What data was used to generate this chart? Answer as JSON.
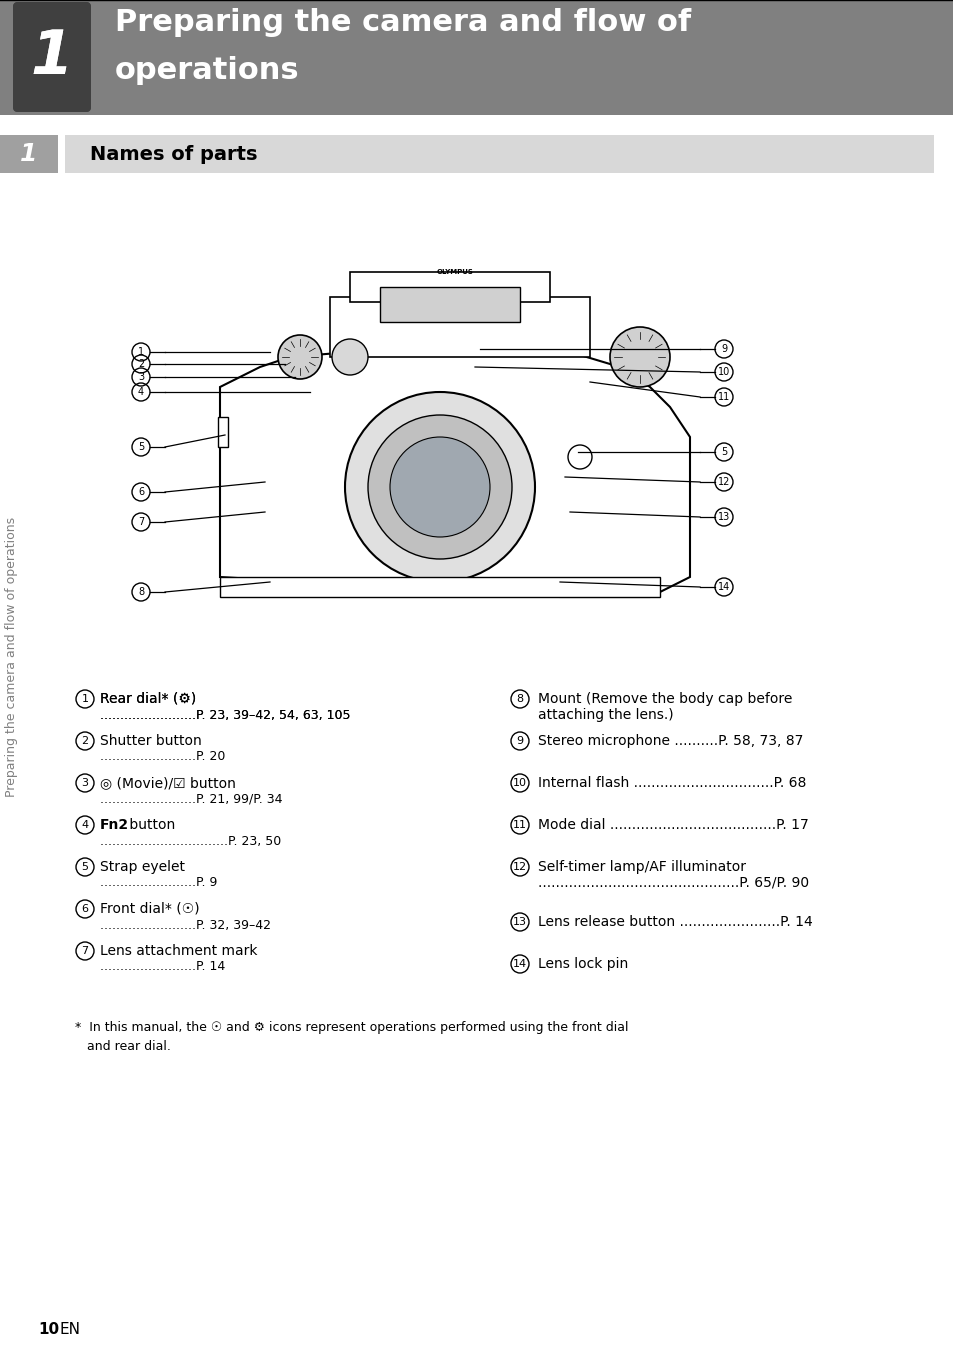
{
  "page_bg": "#ffffff",
  "header_bg": "#808080",
  "header_text": "Preparing the camera and flow of\noperations",
  "header_text_color": "#ffffff",
  "chapter_num": "1",
  "chapter_num_color": "#ffffff",
  "chapter_box_bg": "#404040",
  "section_bg": "#d8d8d8",
  "section_text": "Names of parts",
  "section_text_color": "#000000",
  "sidebar_text": "Preparing the camera and flow of operations",
  "sidebar_text_color": "#808080",
  "left_items": [
    {
      "num": "1",
      "text": "Rear dial* (⚙)",
      "pages": "P. 23, 39–42, 54, 63, 105"
    },
    {
      "num": "2",
      "text": "Shutter button",
      "pages": "P. 20"
    },
    {
      "num": "3",
      "text": "◎ (Movie)/☑ button",
      "pages": "P. 21, 99/P. 34"
    },
    {
      "num": "4",
      "text": "Fn2 button",
      "pages": "P. 23, 50",
      "bold": "Fn2"
    },
    {
      "num": "5",
      "text": "Strap eyelet",
      "pages": "P. 9"
    },
    {
      "num": "6",
      "text": "Front dial* (☉)",
      "pages": "P. 32, 39–42"
    },
    {
      "num": "7",
      "text": "Lens attachment mark",
      "pages": "P. 14"
    }
  ],
  "right_items": [
    {
      "num": "8",
      "text": "Mount (Remove the body cap before\nattaching the lens.)",
      "pages": ""
    },
    {
      "num": "9",
      "text": "Stereo microphone",
      "pages": "P. 58, 73, 87"
    },
    {
      "num": "10",
      "text": "Internal flash",
      "pages": "P. 68"
    },
    {
      "num": "11",
      "text": "Mode dial",
      "pages": "P. 17"
    },
    {
      "num": "12",
      "text": "Self-timer lamp/AF illuminator",
      "pages": "P. 65/P. 90"
    },
    {
      "num": "13",
      "text": "Lens release button",
      "pages": "P. 14"
    },
    {
      "num": "14",
      "text": "Lens lock pin",
      "pages": ""
    }
  ],
  "footnote": "*  In this manual, the ☉ and ⚙ icons represent operations performed using the front dial\n   and rear dial.",
  "page_num": "10",
  "dots": "........................"
}
